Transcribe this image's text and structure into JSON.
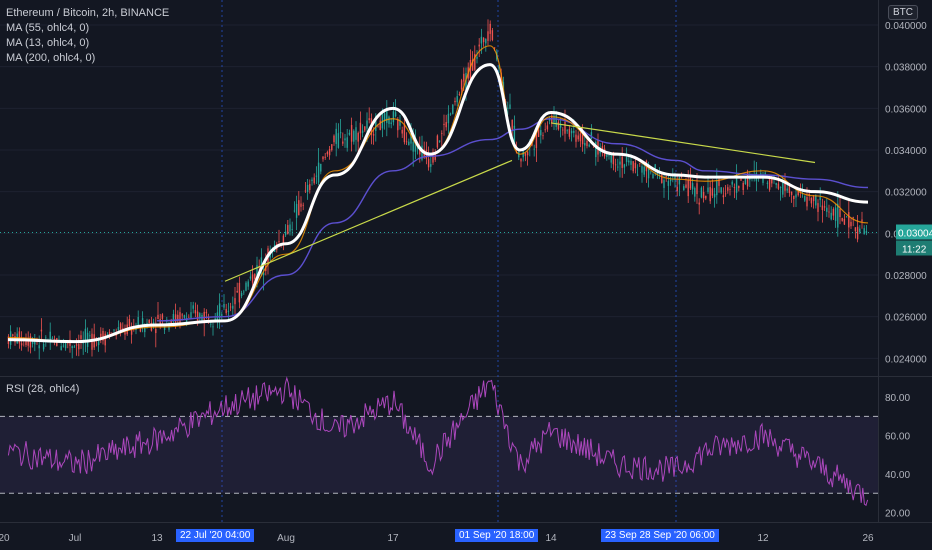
{
  "header": {
    "title": "Ethereum / Bitcoin, 2h, BINANCE",
    "currency": "BTC",
    "ma_labels": [
      "MA (55, ohlc4, 0)",
      "MA (13, ohlc4, 0)",
      "MA (200, ohlc4, 0)"
    ],
    "rsi_label": "RSI (28, ohlc4)"
  },
  "price_axis": {
    "ticks": [
      "0.040000",
      "0.038000",
      "0.036000",
      "0.034000",
      "0.032000",
      "0.030000",
      "0.028000",
      "0.026000",
      "0.024000"
    ],
    "last_price": "0.030040",
    "countdown": "11:22"
  },
  "rsi_axis": {
    "ticks": [
      "80.00",
      "60.00",
      "40.00",
      "20.00"
    ]
  },
  "time_axis": {
    "labels": [
      "20",
      "Jul",
      "13",
      "Aug",
      "17",
      "14",
      "12",
      "26"
    ],
    "highlights": [
      "22 Jul '20   04:00",
      "01 Sep '20   18:00",
      "23 Sep 28 Sep '20   06:00"
    ]
  },
  "colors": {
    "background": "#131722",
    "up": "#26a69a",
    "down": "#ef5350",
    "ma13": "#ffffff",
    "ma55": "#ff9800",
    "ma200": "#5b4fcf",
    "trendline": "#c8d94a",
    "rsi": "#ab47bc",
    "price_label": "#26a69a"
  },
  "chart_data": [
    {
      "type": "line",
      "title": "Ethereum / Bitcoin, 2h, BINANCE",
      "unit": "BTC",
      "x": [
        "Jun 20",
        "Jul 1",
        "Jul 13",
        "Jul 22",
        "Aug 1",
        "Aug 10",
        "Aug 17",
        "Aug 25",
        "Sep 1",
        "Sep 7",
        "Sep 14",
        "Sep 23",
        "Sep 28",
        "Oct 5",
        "Oct 12",
        "Oct 20",
        "Oct 26"
      ],
      "series": [
        {
          "values": [
            0.025,
            0.0247,
            0.0258,
            0.0262,
            0.03,
            0.0345,
            0.0355,
            0.0335,
            0.04,
            0.0335,
            0.0355,
            0.0335,
            0.0325,
            0.0318,
            0.0328,
            0.0315,
            0.03
          ]
        },
        {
          "name": "MA (13, ohlc4, 0)",
          "values": [
            0.0249,
            0.0248,
            0.0256,
            0.0258,
            0.0295,
            0.0328,
            0.036,
            0.0338,
            0.0381,
            0.034,
            0.0358,
            0.0338,
            0.0328,
            0.0327,
            0.0327,
            0.032,
            0.0315
          ]
        },
        {
          "name": "MA (55, ohlc4, 0)",
          "values": [
            0.025,
            0.0248,
            0.0255,
            0.0258,
            0.029,
            0.033,
            0.0355,
            0.0338,
            0.039,
            0.0338,
            0.0356,
            0.0338,
            0.0326,
            0.0325,
            0.033,
            0.0318,
            0.0305
          ]
        },
        {
          "name": "MA (200, ohlc4, 0)",
          "values": [
            null,
            null,
            0.0258,
            0.026,
            0.028,
            0.0305,
            0.033,
            0.0337,
            0.0345,
            0.035,
            0.0355,
            0.0343,
            0.0335,
            0.033,
            0.0328,
            0.0326,
            0.0322
          ]
        }
      ],
      "ylim": [
        0.0232,
        0.0412
      ],
      "trendlines": [
        {
          "from": [
            "Jul 22",
            0.0277
          ],
          "to": [
            "Sep 3",
            0.0335
          ]
        },
        {
          "from": [
            "Sep 14",
            0.0353
          ],
          "to": [
            "Oct 20",
            0.0334
          ]
        }
      ]
    },
    {
      "type": "line",
      "title": "RSI (28, ohlc4)",
      "x": [
        "Jun 20",
        "Jul 1",
        "Jul 13",
        "Jul 22",
        "Aug 1",
        "Aug 10",
        "Aug 17",
        "Aug 25",
        "Sep 1",
        "Sep 7",
        "Sep 14",
        "Sep 23",
        "Sep 28",
        "Oct 5",
        "Oct 12",
        "Oct 20",
        "Oct 26"
      ],
      "values": [
        52,
        45,
        58,
        75,
        84,
        62,
        78,
        45,
        88,
        45,
        62,
        45,
        42,
        52,
        60,
        45,
        28
      ],
      "ylim": [
        15,
        90
      ],
      "bands": [
        70,
        30
      ]
    }
  ]
}
